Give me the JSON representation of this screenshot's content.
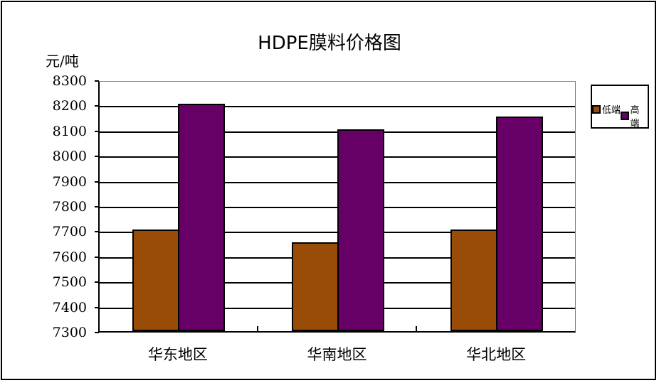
{
  "chart_data": {
    "type": "bar",
    "title": "HDPE膜料价格图",
    "ylabel": "元/吨",
    "xlabel": "",
    "ylim": [
      7300,
      8300
    ],
    "yticks": [
      "8300",
      "8200",
      "8100",
      "8000",
      "7900",
      "7800",
      "7700",
      "7600",
      "7500",
      "7400",
      "7300"
    ],
    "categories": [
      "华东地区",
      "华南地区",
      "华北地区"
    ],
    "series": [
      {
        "name": "低端",
        "color": "#994C07",
        "values": [
          7700,
          7650,
          7700
        ]
      },
      {
        "name": "高端",
        "color": "#660066",
        "values": [
          8200,
          8100,
          8150
        ]
      }
    ],
    "grid": true,
    "legend_position": "right"
  }
}
